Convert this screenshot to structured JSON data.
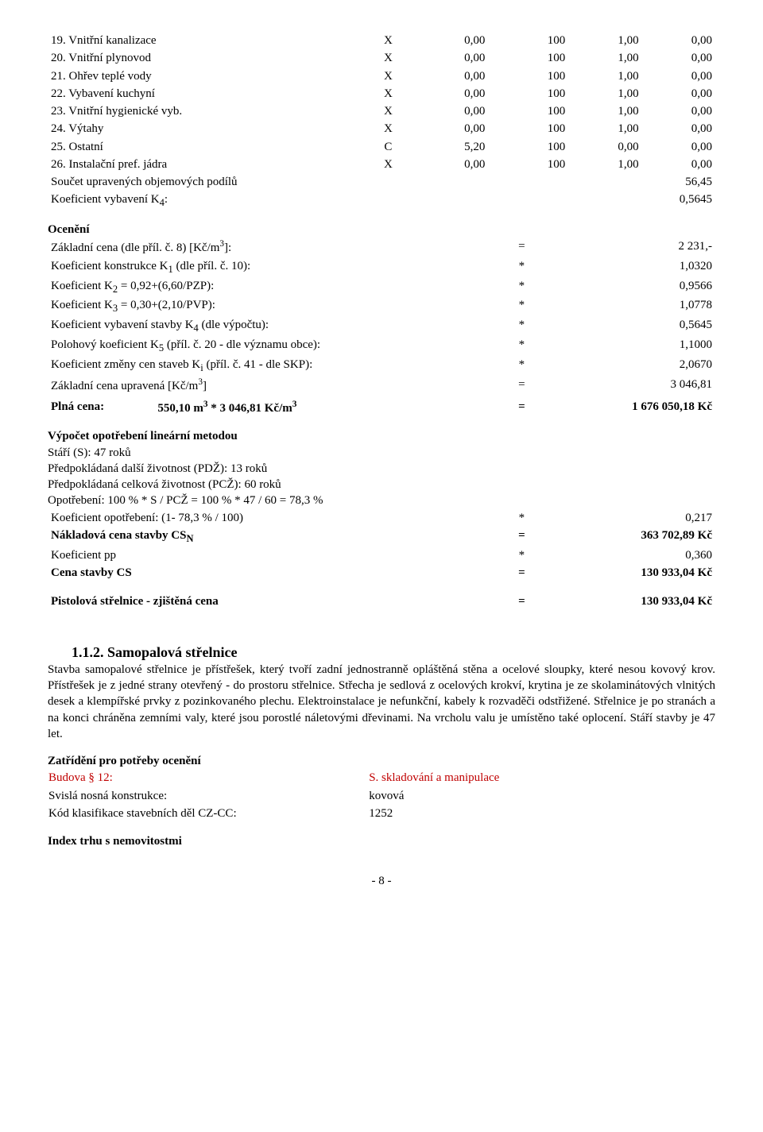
{
  "top_table": {
    "rows": [
      {
        "label": "19. Vnitřní kanalizace",
        "c1": "X",
        "c2": "0,00",
        "c3": "100",
        "c4": "1,00",
        "c5": "0,00"
      },
      {
        "label": "20. Vnitřní plynovod",
        "c1": "X",
        "c2": "0,00",
        "c3": "100",
        "c4": "1,00",
        "c5": "0,00"
      },
      {
        "label": "21. Ohřev teplé vody",
        "c1": "X",
        "c2": "0,00",
        "c3": "100",
        "c4": "1,00",
        "c5": "0,00"
      },
      {
        "label": "22. Vybavení kuchyní",
        "c1": "X",
        "c2": "0,00",
        "c3": "100",
        "c4": "1,00",
        "c5": "0,00"
      },
      {
        "label": "23. Vnitřní hygienické vyb.",
        "c1": "X",
        "c2": "0,00",
        "c3": "100",
        "c4": "1,00",
        "c5": "0,00"
      },
      {
        "label": "24. Výtahy",
        "c1": "X",
        "c2": "0,00",
        "c3": "100",
        "c4": "1,00",
        "c5": "0,00"
      },
      {
        "label": "25. Ostatní",
        "c1": "C",
        "c2": "5,20",
        "c3": "100",
        "c4": "0,00",
        "c5": "0,00"
      },
      {
        "label": "26. Instalační pref. jádra",
        "c1": "X",
        "c2": "0,00",
        "c3": "100",
        "c4": "1,00",
        "c5": "0,00"
      }
    ],
    "sum_label": "Součet upravených objemových podílů",
    "sum_val": "56,45",
    "k4_label": "Koeficient vybavení K",
    "k4_sub": "4",
    "k4_suffix": ":",
    "k4_val": "0,5645"
  },
  "oceneni": {
    "title": "Ocenění",
    "rows": [
      {
        "label_pre": "Základní cena (dle příl. č. 8) [Kč/m",
        "sup": "3",
        "label_post": "]:",
        "op": "=",
        "val": "2 231,-"
      },
      {
        "sub_pre": "Koeficient konstrukce K",
        "sub": "1",
        "sub_post": " (dle příl. č. 10):",
        "op": "*",
        "val": "1,0320"
      },
      {
        "sub_pre": "Koeficient K",
        "sub": "2",
        "sub_post": " = 0,92+(6,60/PZP):",
        "op": "*",
        "val": "0,9566"
      },
      {
        "sub_pre": "Koeficient K",
        "sub": "3",
        "sub_post": " = 0,30+(2,10/PVP):",
        "op": "*",
        "val": "1,0778"
      },
      {
        "sub_pre": "Koeficient vybavení stavby K",
        "sub": "4",
        "sub_post": " (dle výpočtu):",
        "op": "*",
        "val": "0,5645"
      },
      {
        "sub_pre": "Polohový koeficient K",
        "sub": "5",
        "sub_post": " (příl. č. 20 - dle významu obce):",
        "op": "*",
        "val": "1,1000"
      },
      {
        "sub_pre": "Koeficient změny cen staveb K",
        "sub": "i",
        "sub_post": " (příl. č. 41 - dle SKP):",
        "op": "*",
        "val": "2,0670"
      },
      {
        "label_pre": "Základní cena upravená [Kč/m",
        "sup": "3",
        "label_post": "]",
        "op": "=",
        "val": "3 046,81"
      }
    ],
    "plna_label_pre": "Plná cena:",
    "plna_mid_pre": "550,10 m",
    "plna_sup1": "3",
    "plna_mid_mid": " * 3 046,81 Kč/m",
    "plna_sup2": "3",
    "plna_op": "=",
    "plna_val": "1 676 050,18 Kč"
  },
  "vypocet": {
    "title": "Výpočet opotřebení lineární metodou",
    "lines": [
      "Stáří (S): 47 roků",
      "Předpokládaná další životnost (PDŽ): 13 roků",
      "Předpokládaná celková životnost (PCŽ): 60 roků",
      "Opotřebení: 100 % * S / PCŽ = 100 % * 47 / 60 = 78,3 %"
    ],
    "rows": [
      {
        "label": "Koeficient opotřebení: (1- 78,3 % / 100)",
        "op": "*",
        "val": "0,217",
        "bold": false
      },
      {
        "label_pre": "Nákladová cena stavby CS",
        "sub": "N",
        "op": "=",
        "val": "363 702,89 Kč",
        "bold": true
      },
      {
        "label": "Koeficient pp",
        "op": "*",
        "val": "0,360",
        "bold": false
      },
      {
        "label": "Cena stavby CS",
        "op": "=",
        "val": "130 933,04 Kč",
        "bold": true
      }
    ],
    "final_label": "Pistolová střelnice - zjištěná cena",
    "final_op": "=",
    "final_val": "130 933,04 Kč"
  },
  "samopal": {
    "title": "1.1.2. Samopalová střelnice",
    "para": "Stavba samopalové střelnice je přístřešek, který tvoří zadní jednostranně opláštěná stěna a ocelové sloupky, které nesou kovový krov. Přístřešek je z jedné strany otevřený - do prostoru střelnice. Střecha je sedlová z ocelových krokví, krytina je ze skolaminátových vlnitých desek a klempířské prvky z pozinkovaného plechu. Elektroinstalace je nefunkční, kabely k rozvaděči odstřižené. Střelnice je po stranách a na konci chráněna zemními valy, které jsou porostlé náletovými dřevinami. Na vrcholu valu je umístěno také oplocení. Stáří stavby je 47 let."
  },
  "zatrideni": {
    "title": "Zatřídění pro potřeby ocenění",
    "rows": [
      {
        "l": "Budova § 12:",
        "r": "S. skladování a manipulace",
        "red": true
      },
      {
        "l": "Svislá nosná konstrukce:",
        "r": "kovová",
        "red": false
      },
      {
        "l": "Kód klasifikace stavebních děl CZ-CC:",
        "r": "1252",
        "red": false
      }
    ]
  },
  "index_title": "Index trhu s nemovitostmi",
  "footer": "- 8 -"
}
